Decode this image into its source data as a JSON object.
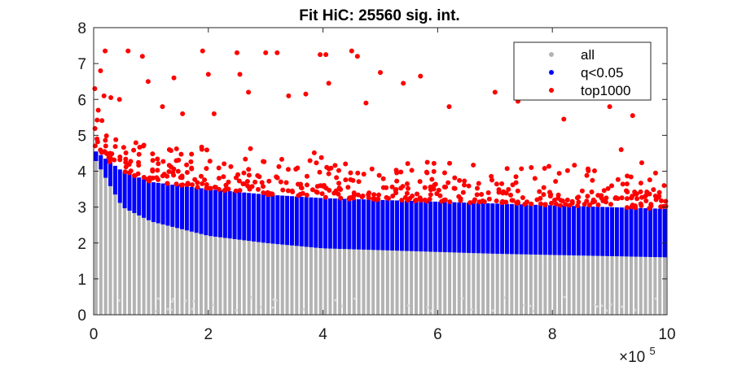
{
  "chart_data": {
    "type": "scatter",
    "title": "Fit HiC: 25560 sig. int.",
    "xlabel": "",
    "ylabel": "",
    "xlim": [
      0,
      1000000
    ],
    "ylim": [
      0,
      8
    ],
    "x_ticks": [
      0,
      2,
      4,
      6,
      8,
      10
    ],
    "x_multiplier": {
      "base": "×10",
      "exponent": "5"
    },
    "y_ticks": [
      0,
      1,
      2,
      3,
      4,
      5,
      6,
      7,
      8
    ],
    "grid": false,
    "legend_position": "top-right",
    "series": [
      {
        "name": "all",
        "color": "#b3b3b3",
        "description_envelope": [
          [
            0,
            4.4
          ],
          [
            50000,
            3.0
          ],
          [
            100000,
            2.6
          ],
          [
            200000,
            2.2
          ],
          [
            300000,
            2.0
          ],
          [
            400000,
            1.85
          ],
          [
            500000,
            1.8
          ],
          [
            700000,
            1.7
          ],
          [
            1000000,
            1.6
          ]
        ]
      },
      {
        "name": "q<0.05",
        "color": "#0000ff",
        "upper_envelope": [
          [
            0,
            4.6
          ],
          [
            50000,
            4.0
          ],
          [
            100000,
            3.7
          ],
          [
            200000,
            3.5
          ],
          [
            300000,
            3.35
          ],
          [
            400000,
            3.25
          ],
          [
            500000,
            3.2
          ],
          [
            700000,
            3.1
          ],
          [
            1000000,
            2.95
          ]
        ]
      },
      {
        "name": "top1000",
        "color": "#ff0000",
        "outliers": [
          [
            2000,
            6.3
          ],
          [
            8000,
            5.7
          ],
          [
            12000,
            6.8
          ],
          [
            18000,
            6.1
          ],
          [
            20000,
            7.35
          ],
          [
            30000,
            6.05
          ],
          [
            45000,
            6.0
          ],
          [
            60000,
            7.35
          ],
          [
            85000,
            7.2
          ],
          [
            95000,
            6.5
          ],
          [
            120000,
            5.8
          ],
          [
            140000,
            6.6
          ],
          [
            155000,
            5.6
          ],
          [
            190000,
            7.35
          ],
          [
            200000,
            6.7
          ],
          [
            210000,
            5.6
          ],
          [
            250000,
            7.3
          ],
          [
            255000,
            6.7
          ],
          [
            270000,
            6.2
          ],
          [
            300000,
            7.3
          ],
          [
            320000,
            7.3
          ],
          [
            340000,
            6.1
          ],
          [
            370000,
            6.15
          ],
          [
            395000,
            7.25
          ],
          [
            405000,
            7.25
          ],
          [
            410000,
            6.45
          ],
          [
            450000,
            7.35
          ],
          [
            460000,
            7.2
          ],
          [
            475000,
            5.9
          ],
          [
            500000,
            6.75
          ],
          [
            540000,
            6.45
          ],
          [
            570000,
            6.65
          ],
          [
            620000,
            5.8
          ],
          [
            700000,
            6.2
          ],
          [
            740000,
            5.95
          ],
          [
            800000,
            6.4
          ],
          [
            820000,
            5.45
          ],
          [
            900000,
            5.8
          ],
          [
            920000,
            4.6
          ],
          [
            940000,
            5.55
          ],
          [
            980000,
            3.95
          ],
          [
            995000,
            3.6
          ]
        ]
      }
    ]
  }
}
